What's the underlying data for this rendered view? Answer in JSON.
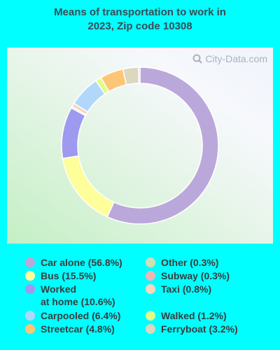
{
  "chart_data": {
    "type": "pie",
    "title": [
      "Means of transportation to work in",
      "2023, Zip code 10308"
    ],
    "watermark": "City-Data.com",
    "slices": [
      {
        "label": "Car alone",
        "value": 56.8,
        "color": "#bba8da"
      },
      {
        "label": "Bus",
        "value": 15.5,
        "color": "#fefe9a"
      },
      {
        "label": "Worked\nat home",
        "value": 10.6,
        "color": "#9d9aef"
      },
      {
        "label": "Other",
        "value": 0.3,
        "color": "#cde1b4"
      },
      {
        "label": "Taxi",
        "value": 0.8,
        "color": "#fcd5bd"
      },
      {
        "label": "Carpooled",
        "value": 6.4,
        "color": "#b1d7fb"
      },
      {
        "label": "Walked",
        "value": 1.2,
        "color": "#dffd89"
      },
      {
        "label": "Streetcar",
        "value": 4.8,
        "color": "#fdc676"
      },
      {
        "label": "Ferryboat",
        "value": 3.2,
        "color": "#dcd7bf"
      },
      {
        "label": "Subway",
        "value": 0.3,
        "color": "#f1b5b4"
      }
    ],
    "legend": [
      {
        "label": "Car alone (56.8%)",
        "color": "#bba8da",
        "column": 0,
        "row": 0
      },
      {
        "label": "Bus (15.5%)",
        "color": "#fefe9a",
        "column": 0,
        "row": 1
      },
      {
        "label": "Worked\nat home (10.6%)",
        "color": "#9d9aef",
        "column": 0,
        "row": 2
      },
      {
        "label": "Carpooled (6.4%)",
        "color": "#b1d7fb",
        "column": 0,
        "row": 4
      },
      {
        "label": "Streetcar (4.8%)",
        "color": "#fdc676",
        "column": 0,
        "row": 5
      },
      {
        "label": "Other (0.3%)",
        "color": "#cde1b4",
        "column": 1,
        "row": 0
      },
      {
        "label": "Subway (0.3%)",
        "color": "#f1b5b4",
        "column": 1,
        "row": 1
      },
      {
        "label": "Taxi (0.8%)",
        "color": "#fcd5bd",
        "column": 1,
        "row": 2
      },
      {
        "label": "Walked (1.2%)",
        "color": "#dffd89",
        "column": 1,
        "row": 4
      },
      {
        "label": "Ferryboat (3.2%)",
        "color": "#dcd7bf",
        "column": 1,
        "row": 5
      }
    ]
  }
}
